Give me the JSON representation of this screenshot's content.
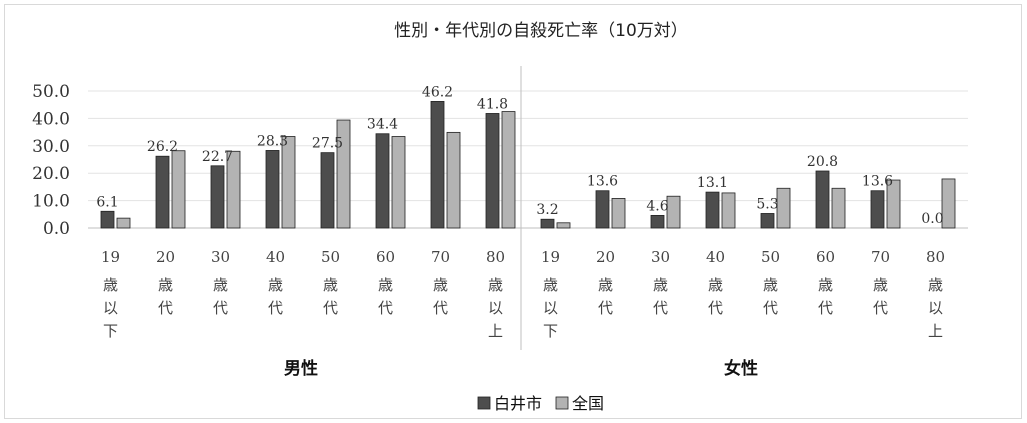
{
  "chart_data": {
    "type": "bar",
    "title": "性別・年代別の自殺死亡率（10万対）",
    "ylim": [
      0,
      50
    ],
    "yticks": [
      "50.0",
      "40.0",
      "30.0",
      "20.0",
      "10.0",
      "0.0"
    ],
    "grid": true,
    "legend_position": "bottom",
    "groups": [
      {
        "name": "男性",
        "categories": [
          {
            "num": "19",
            "chars": [
              "歳",
              "以",
              "下"
            ]
          },
          {
            "num": "20",
            "chars": [
              "歳",
              "代"
            ]
          },
          {
            "num": "30",
            "chars": [
              "歳",
              "代"
            ]
          },
          {
            "num": "40",
            "chars": [
              "歳",
              "代"
            ]
          },
          {
            "num": "50",
            "chars": [
              "歳",
              "代"
            ]
          },
          {
            "num": "60",
            "chars": [
              "歳",
              "代"
            ]
          },
          {
            "num": "70",
            "chars": [
              "歳",
              "代"
            ]
          },
          {
            "num": "80",
            "chars": [
              "歳",
              "以",
              "上"
            ]
          }
        ],
        "labels": [
          "6.1",
          "26.2",
          "22.7",
          "28.3",
          "27.5",
          "34.4",
          "46.2",
          "41.8"
        ]
      },
      {
        "name": "女性",
        "categories": [
          {
            "num": "19",
            "chars": [
              "歳",
              "以",
              "下"
            ]
          },
          {
            "num": "20",
            "chars": [
              "歳",
              "代"
            ]
          },
          {
            "num": "30",
            "chars": [
              "歳",
              "代"
            ]
          },
          {
            "num": "40",
            "chars": [
              "歳",
              "代"
            ]
          },
          {
            "num": "50",
            "chars": [
              "歳",
              "代"
            ]
          },
          {
            "num": "60",
            "chars": [
              "歳",
              "代"
            ]
          },
          {
            "num": "70",
            "chars": [
              "歳",
              "代"
            ]
          },
          {
            "num": "80",
            "chars": [
              "歳",
              "以",
              "上"
            ]
          }
        ],
        "labels": [
          "3.2",
          "13.6",
          "4.6",
          "13.1",
          "5.3",
          "20.8",
          "13.6",
          "0.0"
        ]
      }
    ],
    "series": [
      {
        "name": "白井市",
        "color": "#4d4d4d",
        "values": [
          6.1,
          26.2,
          22.7,
          28.3,
          27.5,
          34.4,
          46.2,
          41.8,
          3.2,
          13.6,
          4.6,
          13.1,
          5.3,
          20.8,
          13.6,
          0.0
        ]
      },
      {
        "name": "全国",
        "color": "#b3b3b3",
        "values": [
          3.6,
          28.2,
          28.0,
          33.4,
          39.4,
          33.4,
          34.9,
          42.5,
          1.9,
          10.8,
          11.6,
          12.8,
          14.5,
          14.5,
          17.5,
          17.9
        ]
      }
    ]
  }
}
